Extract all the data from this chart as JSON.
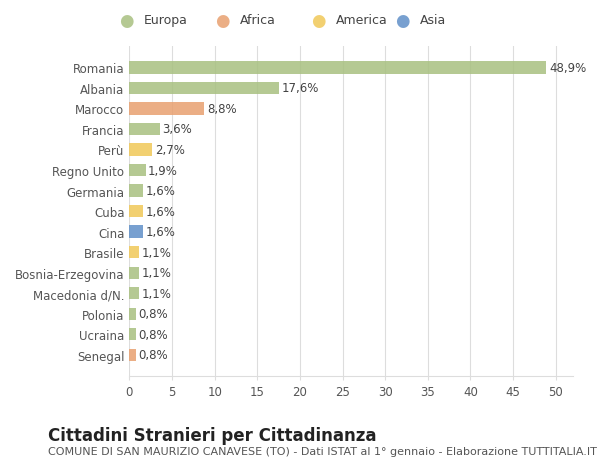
{
  "categories": [
    "Romania",
    "Albania",
    "Marocco",
    "Francia",
    "Perù",
    "Regno Unito",
    "Germania",
    "Cuba",
    "Cina",
    "Brasile",
    "Bosnia-Erzegovina",
    "Macedonia d/N.",
    "Polonia",
    "Ucraina",
    "Senegal"
  ],
  "values": [
    48.9,
    17.6,
    8.8,
    3.6,
    2.7,
    1.9,
    1.6,
    1.6,
    1.6,
    1.1,
    1.1,
    1.1,
    0.8,
    0.8,
    0.8
  ],
  "labels": [
    "48,9%",
    "17,6%",
    "8,8%",
    "3,6%",
    "2,7%",
    "1,9%",
    "1,6%",
    "1,6%",
    "1,6%",
    "1,1%",
    "1,1%",
    "1,1%",
    "0,8%",
    "0,8%",
    "0,8%"
  ],
  "continents": [
    "Europa",
    "Europa",
    "Africa",
    "Europa",
    "America",
    "Europa",
    "Europa",
    "America",
    "Asia",
    "America",
    "Europa",
    "Europa",
    "Europa",
    "Europa",
    "Africa"
  ],
  "colors": {
    "Europa": "#a8c080",
    "Africa": "#e8a070",
    "America": "#f0c858",
    "Asia": "#6090c8"
  },
  "legend_order": [
    "Europa",
    "Africa",
    "America",
    "Asia"
  ],
  "title": "Cittadini Stranieri per Cittadinanza",
  "subtitle": "COMUNE DI SAN MAURIZIO CANAVESE (TO) - Dati ISTAT al 1° gennaio - Elaborazione TUTTITALIA.IT",
  "xlim": [
    0,
    52
  ],
  "xticks": [
    0,
    5,
    10,
    15,
    20,
    25,
    30,
    35,
    40,
    45,
    50
  ],
  "background_color": "#ffffff",
  "grid_color": "#dddddd",
  "bar_height": 0.6,
  "label_fontsize": 8.5,
  "tick_fontsize": 8.5,
  "title_fontsize": 12,
  "subtitle_fontsize": 8
}
